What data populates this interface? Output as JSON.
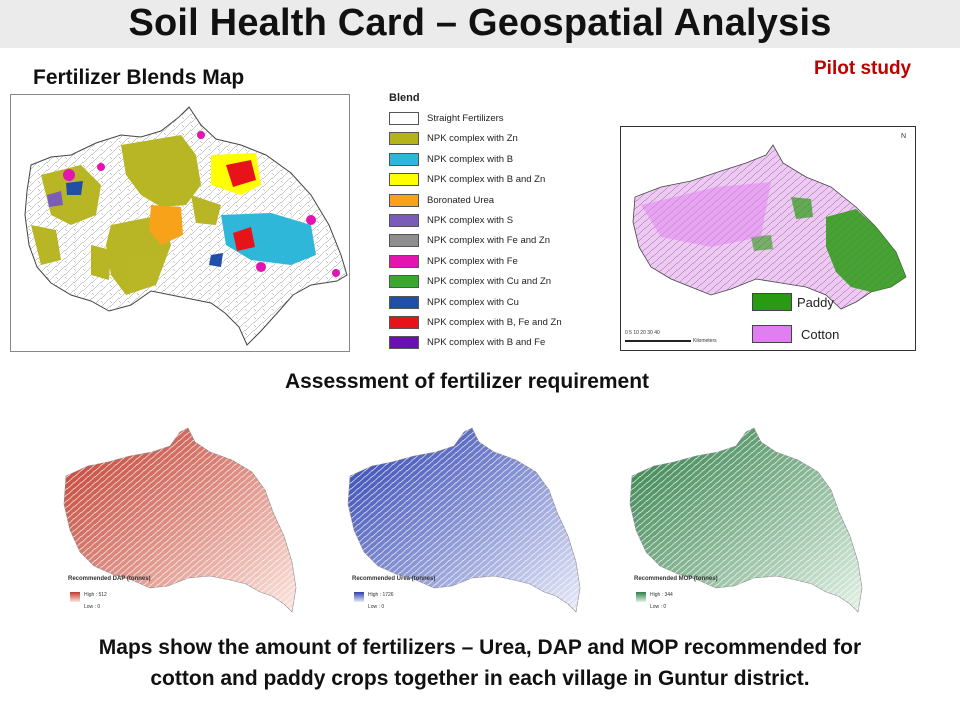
{
  "header": {
    "title": "Soil Health Card – Geospatial Analysis"
  },
  "left_section": {
    "label": "Fertilizer Blends Map"
  },
  "pilot_label": "Pilot study",
  "blend_legend": {
    "title": "Blend",
    "items": [
      {
        "label": "Straight Fertilizers",
        "color": "#ffffff"
      },
      {
        "label": "NPK complex with Zn",
        "color": "#b5b31a"
      },
      {
        "label": "NPK complex with B",
        "color": "#2eb7d8"
      },
      {
        "label": "NPK complex with B and Zn",
        "color": "#ffff00"
      },
      {
        "label": "Boronated Urea",
        "color": "#f8a21a"
      },
      {
        "label": "NPK complex with S",
        "color": "#7b5cb8"
      },
      {
        "label": "NPK complex with Fe and Zn",
        "color": "#8f8f8f"
      },
      {
        "label": "NPK complex with Fe",
        "color": "#e414b0"
      },
      {
        "label": "NPK complex with Cu and Zn",
        "color": "#3aa82e"
      },
      {
        "label": "NPK complex with Cu",
        "color": "#1f4fa6"
      },
      {
        "label": "NPK complex with B, Fe and Zn",
        "color": "#e8121a"
      },
      {
        "label": "NPK complex with B and Fe",
        "color": "#6a0fb0"
      }
    ]
  },
  "crop_map": {
    "compass": "N",
    "legend": [
      {
        "label": "Paddy",
        "color": "#2a9a12"
      },
      {
        "label": "Cotton",
        "color": "#e080f0"
      }
    ],
    "scale_text": "0  5  10    20    30    40",
    "scale_unit": "Kilometers"
  },
  "assessment": {
    "label": "Assessment of fertilizer requirement"
  },
  "fertilizer_maps": [
    {
      "title": "Recommended DAP (tonnes)",
      "high": "High : 512",
      "low": "Low : 0",
      "color_high": "#c0392b",
      "color_low": "#fbe6df"
    },
    {
      "title": "Recommended Urea (tonnes)",
      "high": "High : 1726",
      "low": "Low : 0",
      "color_high": "#2b3fb0",
      "color_low": "#e7eaf8"
    },
    {
      "title": "Recommended MOP (tonnes)",
      "high": "High : 344",
      "low": "Low : 0",
      "color_high": "#2e7d46",
      "color_low": "#e3f1e6"
    }
  ],
  "footer": {
    "line1": "Maps show the amount of fertilizers – Urea, DAP and MOP recommended for",
    "line2": "cotton and paddy crops together in each village in Guntur district."
  }
}
